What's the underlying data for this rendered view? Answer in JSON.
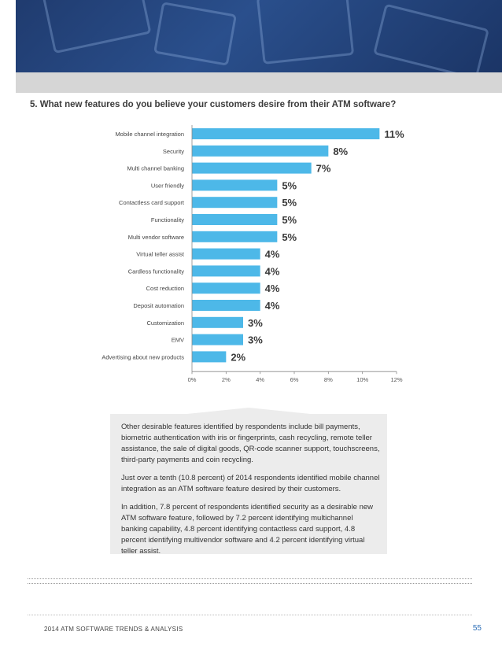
{
  "question": "5.  What new features do you believe your customers desire from their ATM software?",
  "chart_data": {
    "type": "bar",
    "orientation": "horizontal",
    "title": "",
    "xlabel": "",
    "ylabel": "",
    "categories": [
      "Mobile channel integration",
      "Security",
      "Multi channel banking",
      "User friendly",
      "Contactless card support",
      "Functionality",
      "Multi vendor software",
      "Virtual teller assist",
      "Cardless functionality",
      "Cost reduction",
      "Deposit automation",
      "Customization",
      "EMV",
      "Advertising about new products"
    ],
    "values": [
      11,
      8,
      7,
      5,
      5,
      5,
      5,
      4,
      4,
      4,
      4,
      3,
      3,
      2
    ],
    "value_labels": [
      "11%",
      "8%",
      "7%",
      "5%",
      "5%",
      "5%",
      "5%",
      "4%",
      "4%",
      "4%",
      "4%",
      "3%",
      "3%",
      "2%"
    ],
    "xlim": [
      0,
      12
    ],
    "x_ticks": [
      0,
      2,
      4,
      6,
      8,
      10,
      12
    ],
    "x_tick_labels": [
      "0%",
      "2%",
      "4%",
      "6%",
      "8%",
      "10%",
      "12%"
    ],
    "bar_color": "#4db8e8",
    "grid": false,
    "legend": "none"
  },
  "callout": {
    "paragraphs": [
      "Other desirable features identified by respondents include bill payments, biometric authentication with iris or fingerprints, cash recycling, remote teller assistance, the sale of digital goods, QR-code scanner support, touchscreens, third-party payments and coin recycling.",
      "Just over a tenth (10.8 percent) of 2014 respondents identified mobile channel integration as an ATM software feature desired by their customers.",
      "In addition, 7.8 percent of respondents identified security as a desirable new ATM software feature, followed by 7.2 percent identifying multichannel banking capability, 4.8 percent identifying contactless card support, 4.8 percent identifying multivendor software and 4.2 percent identifying virtual teller assist."
    ]
  },
  "footer": {
    "title": "2014 ATM SOFTWARE TRENDS & ANALYSIS",
    "page_number": "55"
  },
  "colors": {
    "banner": "#1f3a6d",
    "accent": "#2e6fb8",
    "callout_bg": "#ececec"
  }
}
